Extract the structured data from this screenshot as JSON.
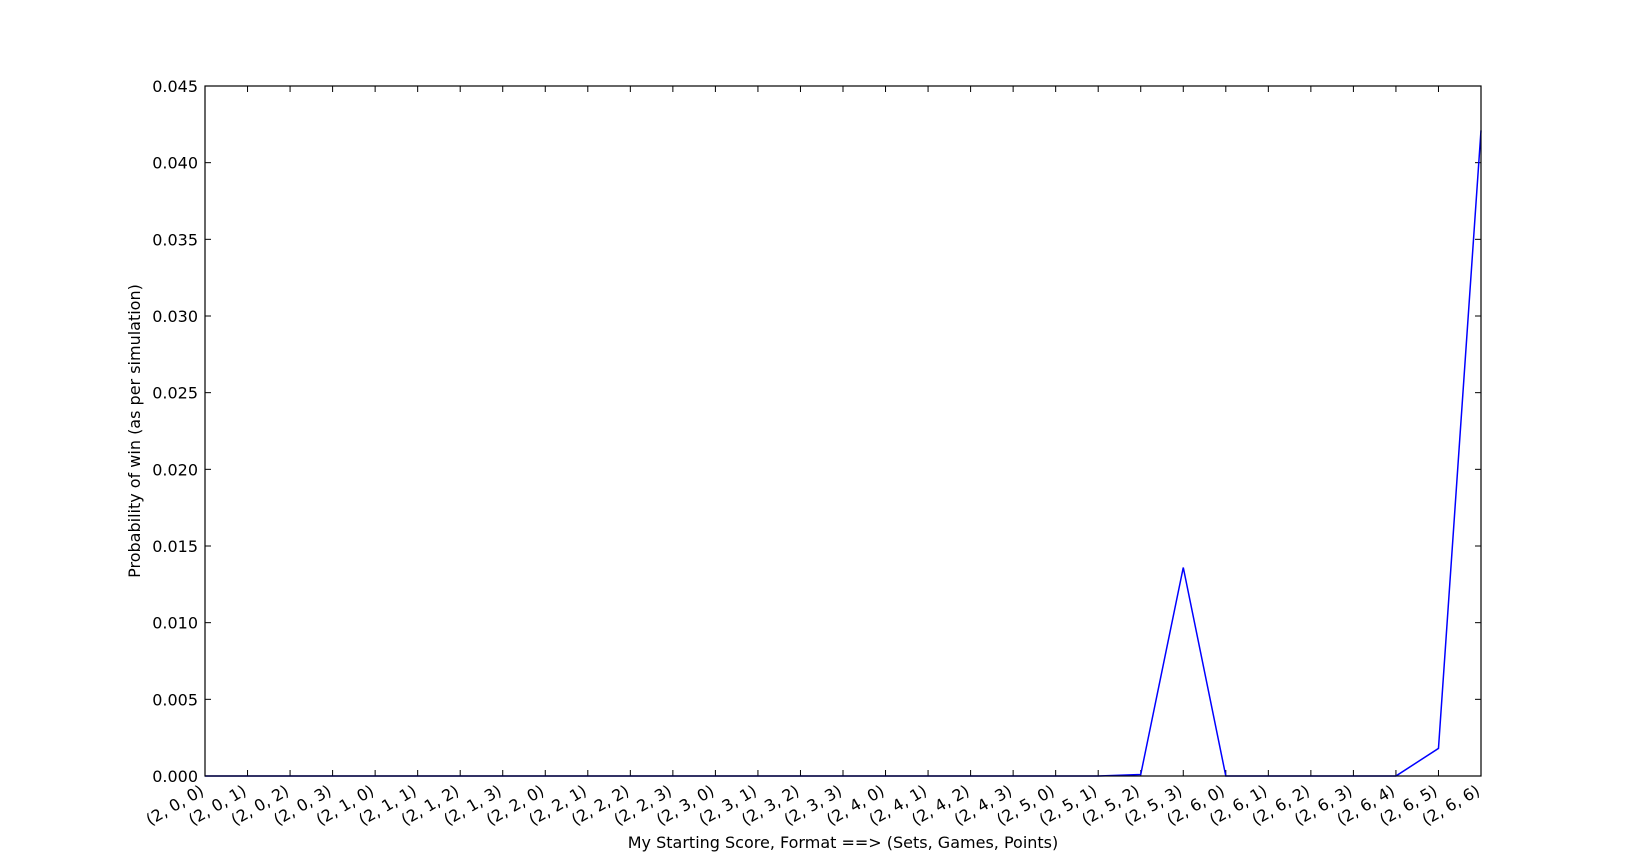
{
  "chart_data": {
    "type": "line",
    "title": "",
    "xlabel": "My Starting Score, Format ==> (Sets, Games, Points)",
    "ylabel": "Probability of win (as per simulation)",
    "ylim": [
      0,
      0.045
    ],
    "yticks": [
      "0.000",
      "0.005",
      "0.010",
      "0.015",
      "0.020",
      "0.025",
      "0.030",
      "0.035",
      "0.040",
      "0.045"
    ],
    "grid": false,
    "legend": "none",
    "categories": [
      "(2, 0, 0)",
      "(2, 0, 1)",
      "(2, 0, 2)",
      "(2, 0, 3)",
      "(2, 1, 0)",
      "(2, 1, 1)",
      "(2, 1, 2)",
      "(2, 1, 3)",
      "(2, 2, 0)",
      "(2, 2, 1)",
      "(2, 2, 2)",
      "(2, 2, 3)",
      "(2, 3, 0)",
      "(2, 3, 1)",
      "(2, 3, 2)",
      "(2, 3, 3)",
      "(2, 4, 0)",
      "(2, 4, 1)",
      "(2, 4, 2)",
      "(2, 4, 3)",
      "(2, 5, 0)",
      "(2, 5, 1)",
      "(2, 5, 2)",
      "(2, 5, 3)",
      "(2, 6, 0)",
      "(2, 6, 1)",
      "(2, 6, 2)",
      "(2, 6, 3)",
      "(2, 6, 4)",
      "(2, 6, 5)",
      "(2, 6, 6)"
    ],
    "series": [
      {
        "color": "#0000ff",
        "values": [
          0,
          0,
          0,
          0,
          0,
          0,
          0,
          0,
          0,
          0,
          0,
          0,
          0,
          0,
          0,
          0,
          0,
          0,
          0,
          0,
          0,
          0,
          0.0001,
          0.0136,
          0,
          0,
          0,
          0,
          0,
          0.0018,
          0.0421
        ]
      }
    ]
  }
}
